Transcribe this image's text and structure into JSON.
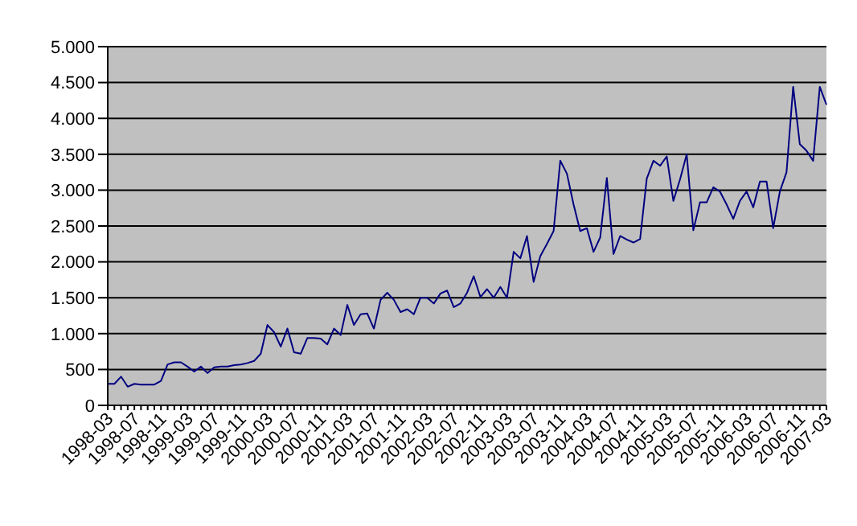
{
  "chart_data": {
    "type": "line",
    "categories": [
      "1998-03",
      null,
      null,
      null,
      "1998-07",
      null,
      null,
      null,
      "1998-11",
      null,
      null,
      null,
      "1999-03",
      null,
      null,
      null,
      "1999-07",
      null,
      null,
      null,
      "1999-11",
      null,
      null,
      null,
      "2000-03",
      null,
      null,
      null,
      "2000-07",
      null,
      null,
      null,
      "2000-11",
      null,
      null,
      null,
      "2001-03",
      null,
      null,
      null,
      "2001-07",
      null,
      null,
      null,
      "2001-11",
      null,
      null,
      null,
      "2002-03",
      null,
      null,
      null,
      "2002-07",
      null,
      null,
      null,
      "2002-11",
      null,
      null,
      null,
      "2003-03",
      null,
      null,
      null,
      "2003-07",
      null,
      null,
      null,
      "2003-11",
      null,
      null,
      null,
      "2004-03",
      null,
      null,
      null,
      "2004-07",
      null,
      null,
      null,
      "2004-11",
      null,
      null,
      null,
      "2005-03",
      null,
      null,
      null,
      "2005-07",
      null,
      null,
      null,
      "2005-11",
      null,
      null,
      null,
      "2006-03",
      null,
      null,
      null,
      "2006-07",
      null,
      null,
      null,
      "2006-11",
      null,
      null,
      null,
      "2007-03"
    ],
    "series": [
      {
        "color": "#000080",
        "values": [
          300,
          300,
          400,
          260,
          300,
          290,
          290,
          290,
          340,
          570,
          600,
          600,
          540,
          470,
          540,
          450,
          530,
          540,
          540,
          560,
          570,
          590,
          620,
          720,
          1120,
          1020,
          820,
          1070,
          740,
          720,
          940,
          940,
          930,
          850,
          1070,
          980,
          1400,
          1120,
          1270,
          1280,
          1070,
          1470,
          1570,
          1470,
          1300,
          1340,
          1270,
          1500,
          1500,
          1420,
          1560,
          1600,
          1370,
          1420,
          1570,
          1800,
          1510,
          1620,
          1500,
          1650,
          1500,
          2140,
          2050,
          2360,
          1720,
          2080,
          2250,
          2430,
          3410,
          3230,
          2800,
          2430,
          2470,
          2140,
          2340,
          3170,
          2110,
          2360,
          2310,
          2270,
          2320,
          3160,
          3410,
          3340,
          3470,
          2850,
          3150,
          3500,
          2440,
          2830,
          2830,
          3040,
          2980,
          2800,
          2600,
          2850,
          2980,
          2760,
          3120,
          3120,
          2470,
          2980,
          3250,
          4440,
          3640,
          3550,
          3410,
          4440,
          4190
        ]
      }
    ],
    "ylim": [
      0,
      5000
    ],
    "yticks": [
      0,
      {
        "value": 500,
        "label": "500"
      },
      {
        "value": 1000,
        "label": "1.000"
      },
      {
        "value": 1500,
        "label": "1.500"
      },
      {
        "value": 2000,
        "label": "2.000"
      },
      {
        "value": 2500,
        "label": "2.500"
      },
      {
        "value": 3000,
        "label": "3.000"
      },
      {
        "value": 3500,
        "label": "3.500"
      },
      {
        "value": 4000,
        "label": "4.000"
      },
      {
        "value": 4500,
        "label": "4.500"
      },
      {
        "value": 5000,
        "label": "5.000"
      }
    ],
    "grid": "y",
    "legend": false,
    "marker": "none"
  }
}
